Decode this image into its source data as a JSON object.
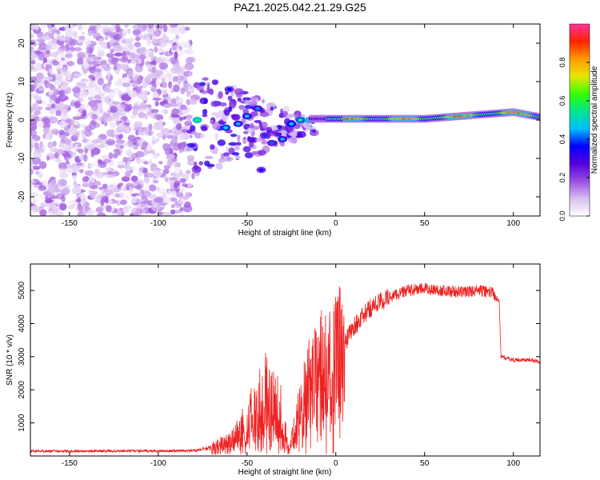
{
  "title": "PAZ1.2025.042.21.29.G25",
  "chart_data": [
    {
      "type": "heatmap",
      "xlabel": "Height of straight line (km)",
      "ylabel": "Frequency (Hz)",
      "xlim": [
        -172,
        115
      ],
      "ylim": [
        -25,
        25
      ],
      "xticks": [
        -150,
        -100,
        -50,
        0,
        50,
        100
      ],
      "yticks": [
        20,
        10,
        0,
        -10,
        -20
      ],
      "colorbar": {
        "label": "Normalized spectral amplitude",
        "range": [
          0.0,
          1.0
        ],
        "ticks": [
          "0.0",
          "0.2",
          "0.4",
          "0.6",
          "0.8"
        ],
        "colors": [
          "#ffffff",
          "#d8bff0",
          "#9a4ee0",
          "#5500dd",
          "#0000ff",
          "#00bfff",
          "#00e68c",
          "#33ff00",
          "#e6e600",
          "#ff9900",
          "#ff2200",
          "#ff3399"
        ]
      },
      "features": [
        {
          "desc": "noise",
          "x_range": [
            -172,
            -82
          ],
          "freq_range": [
            -25,
            25
          ],
          "amplitude_range": [
            0.02,
            0.18
          ]
        },
        {
          "desc": "main",
          "x_range": [
            -10,
            115
          ],
          "freq_range": [
            0.0,
            2.0
          ],
          "amplitude_range": [
            0.5,
            1.0
          ]
        }
      ]
    },
    {
      "type": "line",
      "xlabel": "Height of straight line (km)",
      "ylabel": "SNR (10 * v/v)",
      "xlim": [
        -172,
        115
      ],
      "ylim": [
        0,
        5800
      ],
      "xticks": [
        -150,
        -100,
        -50,
        0,
        50,
        100
      ],
      "yticks": [
        1000,
        2000,
        3000,
        4000,
        5000
      ],
      "line_color": "#ee2222",
      "series": [
        {
          "x": [
            -172,
            -150,
            -100,
            -80,
            -70,
            -60,
            -55,
            -50,
            -45,
            -40,
            -35,
            -30,
            -27,
            -25,
            -20,
            -15,
            -10,
            -5,
            0,
            5,
            10,
            20,
            30,
            40,
            50,
            60,
            70,
            80,
            88,
            92,
            93,
            100,
            110,
            115
          ],
          "values": [
            150,
            150,
            150,
            160,
            250,
            400,
            700,
            1100,
            1500,
            1800,
            1500,
            1200,
            200,
            400,
            1500,
            2200,
            2800,
            2600,
            3000,
            3400,
            3900,
            4500,
            4800,
            5000,
            5050,
            5000,
            4950,
            5000,
            4950,
            4700,
            3000,
            2900,
            2900,
            2850
          ]
        }
      ]
    }
  ]
}
